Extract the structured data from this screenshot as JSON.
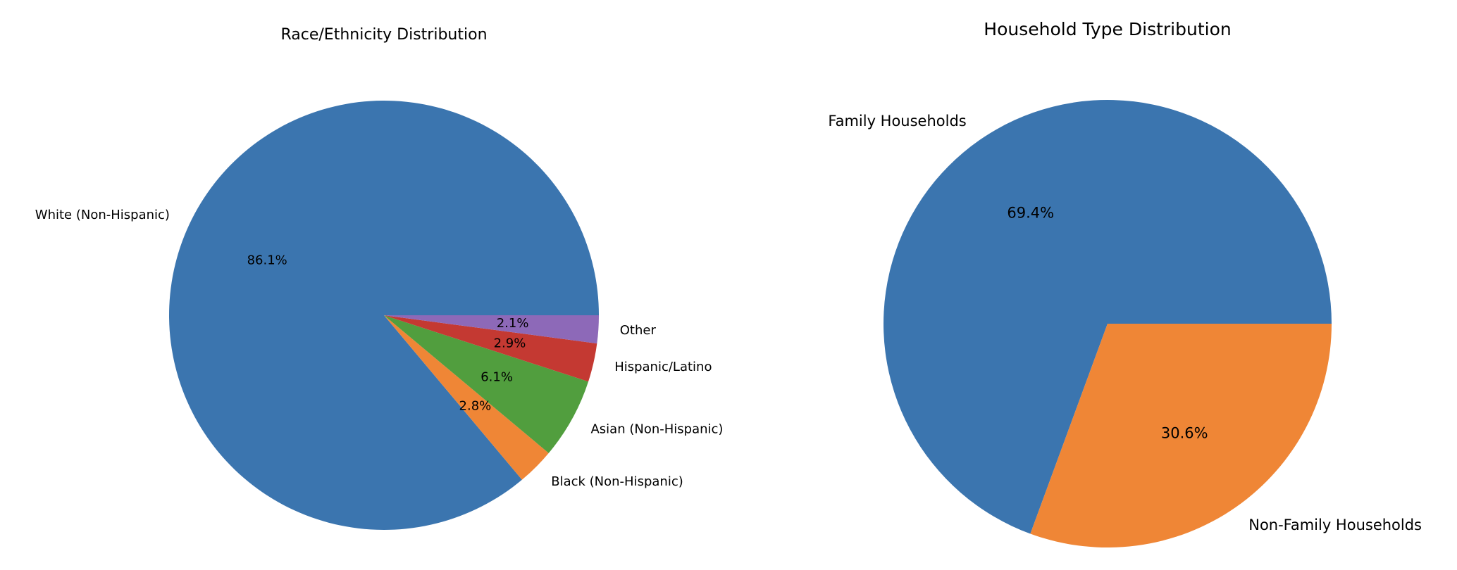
{
  "chart_data": [
    {
      "type": "pie",
      "title": "Race/Ethnicity Distribution",
      "categories": [
        "White (Non-Hispanic)",
        "Black (Non-Hispanic)",
        "Asian (Non-Hispanic)",
        "Hispanic/Latino",
        "Other"
      ],
      "values": [
        86.1,
        2.8,
        6.1,
        2.9,
        2.1
      ],
      "value_labels": [
        "86.1%",
        "2.8%",
        "6.1%",
        "2.9%",
        "2.1%"
      ],
      "colors": [
        "#3b75af",
        "#ef8636",
        "#519e3e",
        "#c43932",
        "#8d69b8"
      ],
      "start_angle_deg": 0,
      "direction": "counterclockwise"
    },
    {
      "type": "pie",
      "title": "Household Type Distribution",
      "categories": [
        "Family Households",
        "Non-Family Households"
      ],
      "values": [
        69.4,
        30.6
      ],
      "value_labels": [
        "69.4%",
        "30.6%"
      ],
      "colors": [
        "#3b75af",
        "#ef8636"
      ],
      "start_angle_deg": 0,
      "direction": "counterclockwise"
    }
  ]
}
